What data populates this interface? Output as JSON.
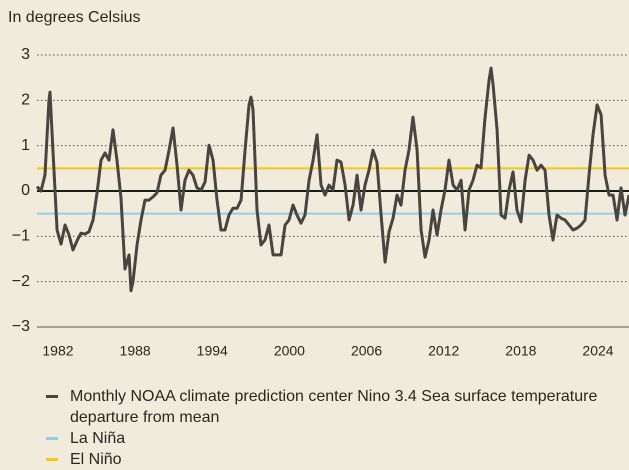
{
  "chart_data": {
    "type": "line",
    "ylabel": "In degrees Celsius",
    "xlim": [
      1980.37,
      2026.41
    ],
    "xticks": [
      1982,
      1988,
      1994,
      2000,
      2006,
      2012,
      2018,
      2024
    ],
    "ylim": [
      -3,
      3
    ],
    "yticks": [
      {
        "value": -3,
        "label": "−3"
      },
      {
        "value": -2,
        "label": "−2"
      },
      {
        "value": -1,
        "label": "−1"
      },
      0,
      1,
      2,
      3
    ],
    "grid": true,
    "series": [
      {
        "name": "Monthly NOAA climate prediction center Nino 3.4 Sea surface temperature departure from mean",
        "color": "#4a4440",
        "x": [
          1980.37,
          1980.68,
          1980.99,
          1981.3,
          1981.38,
          1981.61,
          1981.93,
          1982.24,
          1982.55,
          1982.86,
          1983.17,
          1983.48,
          1983.79,
          1984.1,
          1984.41,
          1984.73,
          1985.04,
          1985.35,
          1985.66,
          1985.97,
          1986.28,
          1986.59,
          1986.9,
          1987.21,
          1987.53,
          1987.68,
          1987.84,
          1988.15,
          1988.46,
          1988.77,
          1989.08,
          1989.39,
          1989.7,
          1990.01,
          1990.33,
          1990.64,
          1990.95,
          1991.26,
          1991.57,
          1991.88,
          1992.19,
          1992.5,
          1992.81,
          1993.13,
          1993.44,
          1993.75,
          1994.06,
          1994.37,
          1994.68,
          1994.99,
          1995.3,
          1995.61,
          1995.93,
          1996.24,
          1996.55,
          1996.86,
          1997.01,
          1997.17,
          1997.48,
          1997.79,
          1998.1,
          1998.41,
          1998.73,
          1999.04,
          1999.35,
          1999.66,
          1999.97,
          2000.28,
          2000.59,
          2000.9,
          2001.21,
          2001.53,
          2001.84,
          2002.15,
          2002.46,
          2002.77,
          2003.08,
          2003.39,
          2003.7,
          2004.01,
          2004.33,
          2004.64,
          2004.95,
          2005.26,
          2005.57,
          2005.88,
          2006.19,
          2006.5,
          2006.81,
          2007.13,
          2007.44,
          2007.75,
          2008.06,
          2008.37,
          2008.68,
          2008.99,
          2009.3,
          2009.61,
          2009.93,
          2010.24,
          2010.55,
          2010.86,
          2011.17,
          2011.48,
          2011.79,
          2012.1,
          2012.41,
          2012.73,
          2013.04,
          2013.35,
          2013.66,
          2013.97,
          2014.28,
          2014.59,
          2014.9,
          2015.21,
          2015.53,
          2015.68,
          2015.84,
          2016.15,
          2016.46,
          2016.77,
          2017.08,
          2017.39,
          2017.7,
          2018.01,
          2018.33,
          2018.64,
          2018.95,
          2019.26,
          2019.57,
          2019.88,
          2020.19,
          2020.5,
          2020.81,
          2021.13,
          2021.44,
          2021.75,
          2022.06,
          2022.37,
          2022.68,
          2022.99,
          2023.3,
          2023.61,
          2023.93,
          2024.24,
          2024.55,
          2024.86,
          2025.17,
          2025.48,
          2025.79,
          2026.1,
          2026.41
        ],
        "values": [
          0.1,
          0.0,
          0.35,
          2.0,
          2.18,
          0.9,
          -0.86,
          -1.17,
          -0.75,
          -0.97,
          -1.3,
          -1.1,
          -0.93,
          -0.95,
          -0.9,
          -0.64,
          -0.04,
          0.68,
          0.84,
          0.68,
          1.35,
          0.68,
          -0.15,
          -1.72,
          -1.41,
          -2.2,
          -1.99,
          -1.19,
          -0.64,
          -0.2,
          -0.2,
          -0.13,
          -0.04,
          0.35,
          0.46,
          0.9,
          1.39,
          0.57,
          -0.42,
          0.24,
          0.46,
          0.35,
          0.07,
          0.02,
          0.2,
          1.01,
          0.68,
          -0.2,
          -0.86,
          -0.86,
          -0.53,
          -0.38,
          -0.38,
          -0.2,
          0.9,
          1.9,
          2.07,
          1.79,
          -0.42,
          -1.19,
          -1.08,
          -0.75,
          -1.41,
          -1.41,
          -1.41,
          -0.75,
          -0.64,
          -0.31,
          -0.53,
          -0.71,
          -0.53,
          0.24,
          0.68,
          1.24,
          0.13,
          -0.09,
          0.13,
          0.02,
          0.68,
          0.64,
          0.13,
          -0.64,
          -0.31,
          0.35,
          -0.42,
          0.13,
          0.46,
          0.9,
          0.64,
          -0.53,
          -1.57,
          -0.9,
          -0.6,
          -0.09,
          -0.31,
          0.46,
          0.9,
          1.63,
          0.9,
          -0.86,
          -1.46,
          -1.08,
          -0.42,
          -0.97,
          -0.42,
          0.02,
          0.68,
          0.13,
          0.02,
          0.24,
          -0.86,
          0.02,
          0.24,
          0.57,
          0.51,
          1.61,
          2.45,
          2.71,
          2.34,
          1.35,
          -0.53,
          -0.6,
          0.02,
          0.42,
          -0.42,
          -0.68,
          0.24,
          0.79,
          0.68,
          0.46,
          0.57,
          0.46,
          -0.53,
          -1.08,
          -0.53,
          -0.6,
          -0.64,
          -0.75,
          -0.86,
          -0.82,
          -0.75,
          -0.64,
          0.35,
          1.24,
          1.9,
          1.68,
          0.35,
          -0.09,
          -0.09,
          -0.64,
          0.07,
          -0.53,
          -0.09
        ]
      }
    ],
    "reference_lines": [
      {
        "name": "La Niña",
        "value": -0.5,
        "color": "#8fd0e8"
      },
      {
        "name": "El Niño",
        "value": 0.5,
        "color": "#f4c918"
      }
    ]
  }
}
